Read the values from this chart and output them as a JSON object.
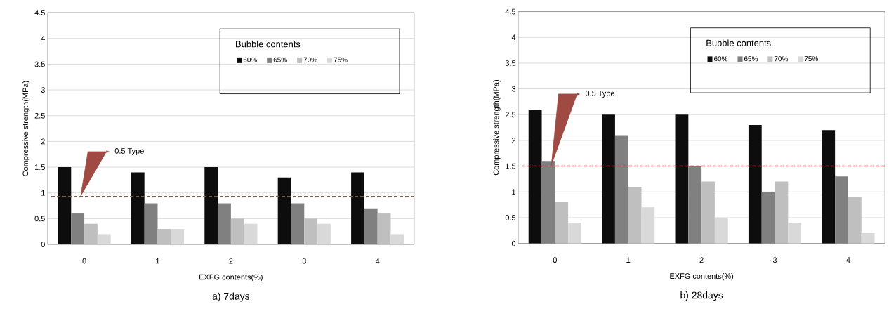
{
  "chart_data": [
    {
      "type": "bar",
      "title": "a)  7days",
      "xlabel": "EXFG contents(%)",
      "ylabel": "Compressive strength(MPa)",
      "categories": [
        "0",
        "1",
        "2",
        "3",
        "4"
      ],
      "series": [
        {
          "name": "60%",
          "color": "#0d0d0d",
          "values": [
            1.5,
            1.4,
            1.5,
            1.3,
            1.4
          ]
        },
        {
          "name": "65%",
          "color": "#808080",
          "values": [
            0.6,
            0.8,
            0.8,
            0.8,
            0.7
          ]
        },
        {
          "name": "70%",
          "color": "#bfbfbf",
          "values": [
            0.4,
            0.3,
            0.5,
            0.5,
            0.6
          ]
        },
        {
          "name": "75%",
          "color": "#d9d9d9",
          "values": [
            0.2,
            0.3,
            0.4,
            0.4,
            0.2
          ]
        }
      ],
      "ylim": [
        0,
        4.5
      ],
      "yticks": [
        0,
        0.5,
        1,
        1.5,
        2,
        2.5,
        3,
        3.5,
        4,
        4.5
      ],
      "grid": "y",
      "legend": "top right",
      "legend_title": "Bubble contents",
      "ref_lines": [
        {
          "axis": "y",
          "value": 0.93,
          "label": "0.5 Type",
          "color": "#a04a44",
          "line_style": "dashed"
        }
      ]
    },
    {
      "type": "bar",
      "title": "b)  28days",
      "xlabel": "EXFG contents(%)",
      "ylabel": "Compressive strength(MPa)",
      "categories": [
        "0",
        "1",
        "2",
        "3",
        "4"
      ],
      "series": [
        {
          "name": "60%",
          "color": "#0d0d0d",
          "values": [
            2.6,
            2.5,
            2.5,
            2.3,
            2.2
          ]
        },
        {
          "name": "65%",
          "color": "#808080",
          "values": [
            1.6,
            2.1,
            1.5,
            1.0,
            1.3
          ]
        },
        {
          "name": "70%",
          "color": "#bfbfbf",
          "values": [
            0.8,
            1.1,
            1.2,
            1.2,
            0.9
          ]
        },
        {
          "name": "75%",
          "color": "#d9d9d9",
          "values": [
            0.4,
            0.7,
            0.5,
            0.4,
            0.2
          ]
        }
      ],
      "ylim": [
        0,
        4.5
      ],
      "yticks": [
        0,
        0.5,
        1,
        1.5,
        2,
        2.5,
        3,
        3.5,
        4,
        4.5
      ],
      "grid": "y",
      "legend": "top right",
      "legend_title": "Bubble contents",
      "ref_lines": [
        {
          "axis": "y",
          "value": 1.5,
          "label": "0.5 Type",
          "color": "#a04a44",
          "line_style": "dashed"
        }
      ]
    }
  ]
}
